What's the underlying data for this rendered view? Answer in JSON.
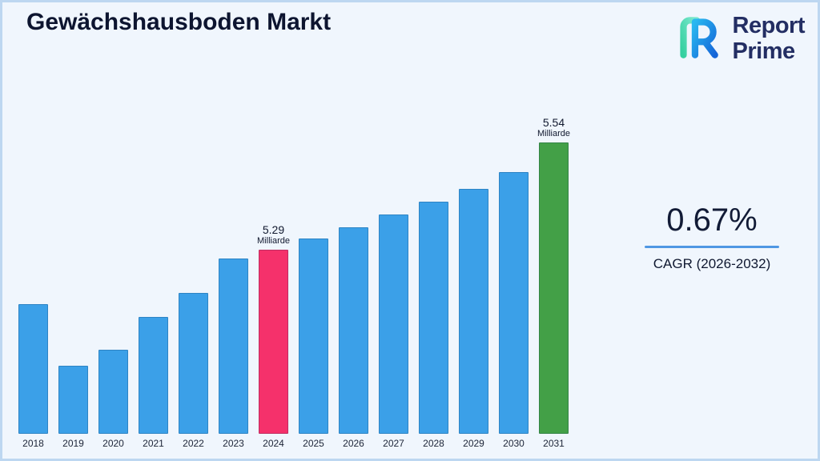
{
  "page": {
    "title": "Gewächshausboden Markt",
    "background": "#f0f6fd",
    "border_color": "#bdd7f1"
  },
  "logo": {
    "line1": "Report",
    "line2": "Prime",
    "text_color": "#232e63"
  },
  "stats": {
    "cagr_value": "0.67%",
    "cagr_label": "CAGR (2026-2032)",
    "underline_color": "#4f97e3"
  },
  "chart_data": {
    "type": "bar",
    "title": "Gewächshausboden Markt",
    "categories": [
      "2018",
      "2019",
      "2020",
      "2021",
      "2022",
      "2023",
      "2024",
      "2025",
      "2026",
      "2027",
      "2028",
      "2029",
      "2030",
      "2031"
    ],
    "values": [
      0.445,
      0.234,
      0.288,
      0.401,
      0.484,
      0.602,
      0.632,
      0.67,
      0.709,
      0.753,
      0.797,
      0.841,
      0.898,
      1.0
    ],
    "value_unit": "fraction_of_max_bar_height",
    "annotations": [
      {
        "category": "2024",
        "value": "5.29",
        "unit": "Milliarde"
      },
      {
        "category": "2031",
        "value": "5.54",
        "unit": "Milliarde"
      }
    ],
    "colors": {
      "default": "#3BA0E8",
      "highlights": {
        "2024": "#F5316B",
        "2031": "#43A047"
      }
    },
    "xlabel": "",
    "ylabel": "",
    "ylim": [
      0,
      1
    ],
    "grid": false,
    "legend": false
  }
}
